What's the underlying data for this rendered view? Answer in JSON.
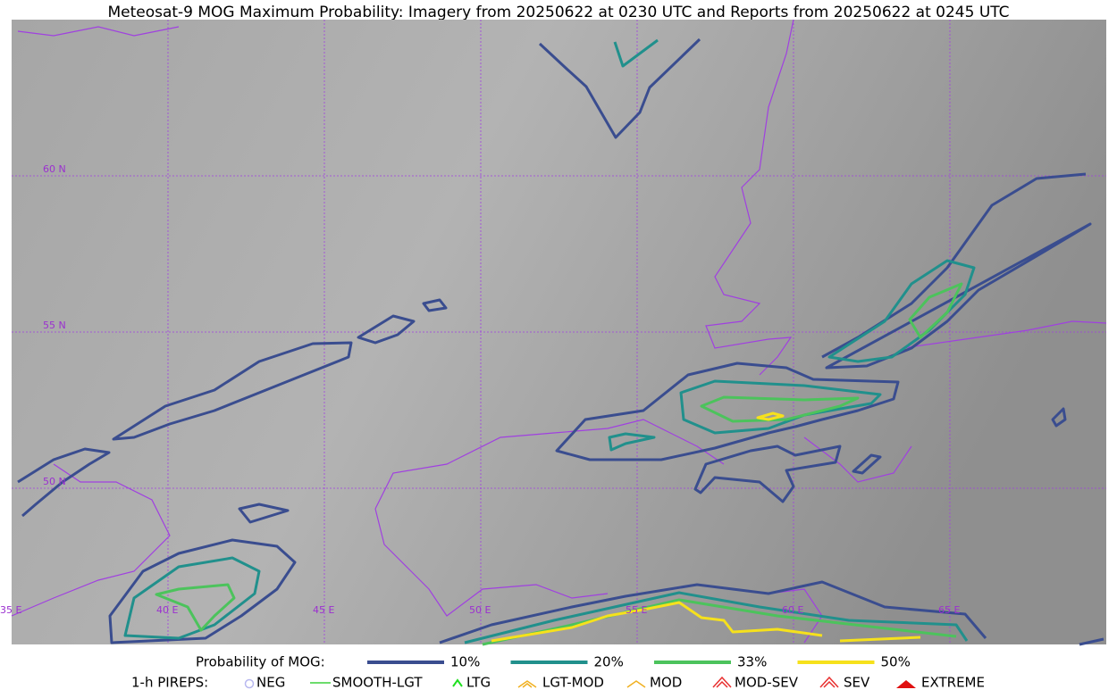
{
  "title": "Meteosat-9 MOG Maximum Probability: Imagery from 20250622 at 0230 UTC and Reports from 20250622 at 0245 UTC",
  "map": {
    "lat_labels": [
      "60 N",
      "55 N",
      "50 N"
    ],
    "lon_labels": [
      "35 E",
      "40 E",
      "45 E",
      "50 E",
      "55 E",
      "60 E",
      "65 E"
    ]
  },
  "legend": {
    "title": "Probability of MOG:",
    "levels": [
      {
        "label": "10%",
        "color": "#3a4d8f"
      },
      {
        "label": "20%",
        "color": "#21908c"
      },
      {
        "label": "33%",
        "color": "#4cc35c"
      },
      {
        "label": "50%",
        "color": "#f6e11c"
      }
    ]
  },
  "pireps": {
    "title": "1-h PIREPS:",
    "items": [
      "NEG",
      "SMOOTH-LGT",
      "LTG",
      "LGT-MOD",
      "MOD",
      "MOD-SEV",
      "SEV",
      "EXTREME"
    ]
  }
}
